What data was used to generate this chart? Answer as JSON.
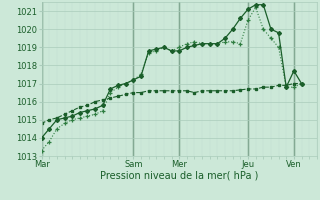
{
  "title": "",
  "xlabel": "Pression niveau de la mer( hPa )",
  "bg_color": "#cce8d8",
  "grid_color_major": "#aaccbb",
  "grid_color_minor": "#c0ddd0",
  "line_color_dark": "#1a5e2a",
  "line_color_mid": "#2e7d40",
  "ylim": [
    1013.0,
    1021.5
  ],
  "yticks": [
    1013,
    1014,
    1015,
    1016,
    1017,
    1018,
    1019,
    1020,
    1021
  ],
  "day_labels": [
    "Mar",
    "Sam",
    "Mer",
    "Jeu",
    "Ven"
  ],
  "day_positions": [
    0,
    60,
    90,
    135,
    165
  ],
  "xlim": [
    0,
    180
  ],
  "series1": {
    "x": [
      0,
      5,
      10,
      15,
      20,
      25,
      30,
      35,
      40,
      45,
      50,
      55,
      60,
      65,
      70,
      75,
      80,
      85,
      90,
      95,
      100,
      105,
      110,
      115,
      120,
      125,
      130,
      135,
      140,
      145,
      150,
      155,
      160,
      165,
      170
    ],
    "y": [
      1013.3,
      1013.8,
      1014.5,
      1014.8,
      1015.0,
      1015.1,
      1015.2,
      1015.3,
      1015.5,
      1016.5,
      1016.8,
      1017.0,
      1017.2,
      1017.5,
      1018.7,
      1018.8,
      1019.0,
      1018.8,
      1019.0,
      1019.2,
      1019.3,
      1019.2,
      1019.2,
      1019.2,
      1019.3,
      1019.3,
      1019.2,
      1020.5,
      1021.2,
      1020.0,
      1019.5,
      1019.0,
      1016.8,
      1016.8,
      1017.0
    ]
  },
  "series2": {
    "x": [
      0,
      5,
      10,
      15,
      20,
      25,
      30,
      35,
      40,
      45,
      50,
      55,
      60,
      65,
      70,
      75,
      80,
      85,
      90,
      95,
      100,
      105,
      110,
      115,
      120,
      125,
      130,
      135,
      140,
      145,
      150,
      155,
      160,
      165,
      170
    ],
    "y": [
      1014.0,
      1014.5,
      1015.0,
      1015.1,
      1015.2,
      1015.4,
      1015.5,
      1015.6,
      1015.8,
      1016.7,
      1016.9,
      1017.0,
      1017.2,
      1017.4,
      1018.8,
      1018.9,
      1019.0,
      1018.8,
      1018.8,
      1019.0,
      1019.1,
      1019.2,
      1019.2,
      1019.2,
      1019.5,
      1020.0,
      1020.6,
      1021.1,
      1021.35,
      1021.35,
      1020.0,
      1019.8,
      1016.8,
      1017.7,
      1017.0
    ]
  },
  "series3": {
    "x": [
      0,
      5,
      10,
      15,
      20,
      25,
      30,
      35,
      40,
      45,
      50,
      55,
      60,
      65,
      70,
      75,
      80,
      85,
      90,
      95,
      100,
      105,
      110,
      115,
      120,
      125,
      130,
      135,
      140,
      145,
      150,
      155,
      160,
      165,
      170
    ],
    "y": [
      1014.8,
      1015.0,
      1015.1,
      1015.3,
      1015.5,
      1015.7,
      1015.8,
      1016.0,
      1016.1,
      1016.2,
      1016.3,
      1016.4,
      1016.5,
      1016.5,
      1016.6,
      1016.6,
      1016.6,
      1016.6,
      1016.6,
      1016.6,
      1016.5,
      1016.6,
      1016.6,
      1016.6,
      1016.6,
      1016.6,
      1016.65,
      1016.7,
      1016.7,
      1016.8,
      1016.8,
      1016.9,
      1016.9,
      1017.0,
      1017.0
    ]
  }
}
